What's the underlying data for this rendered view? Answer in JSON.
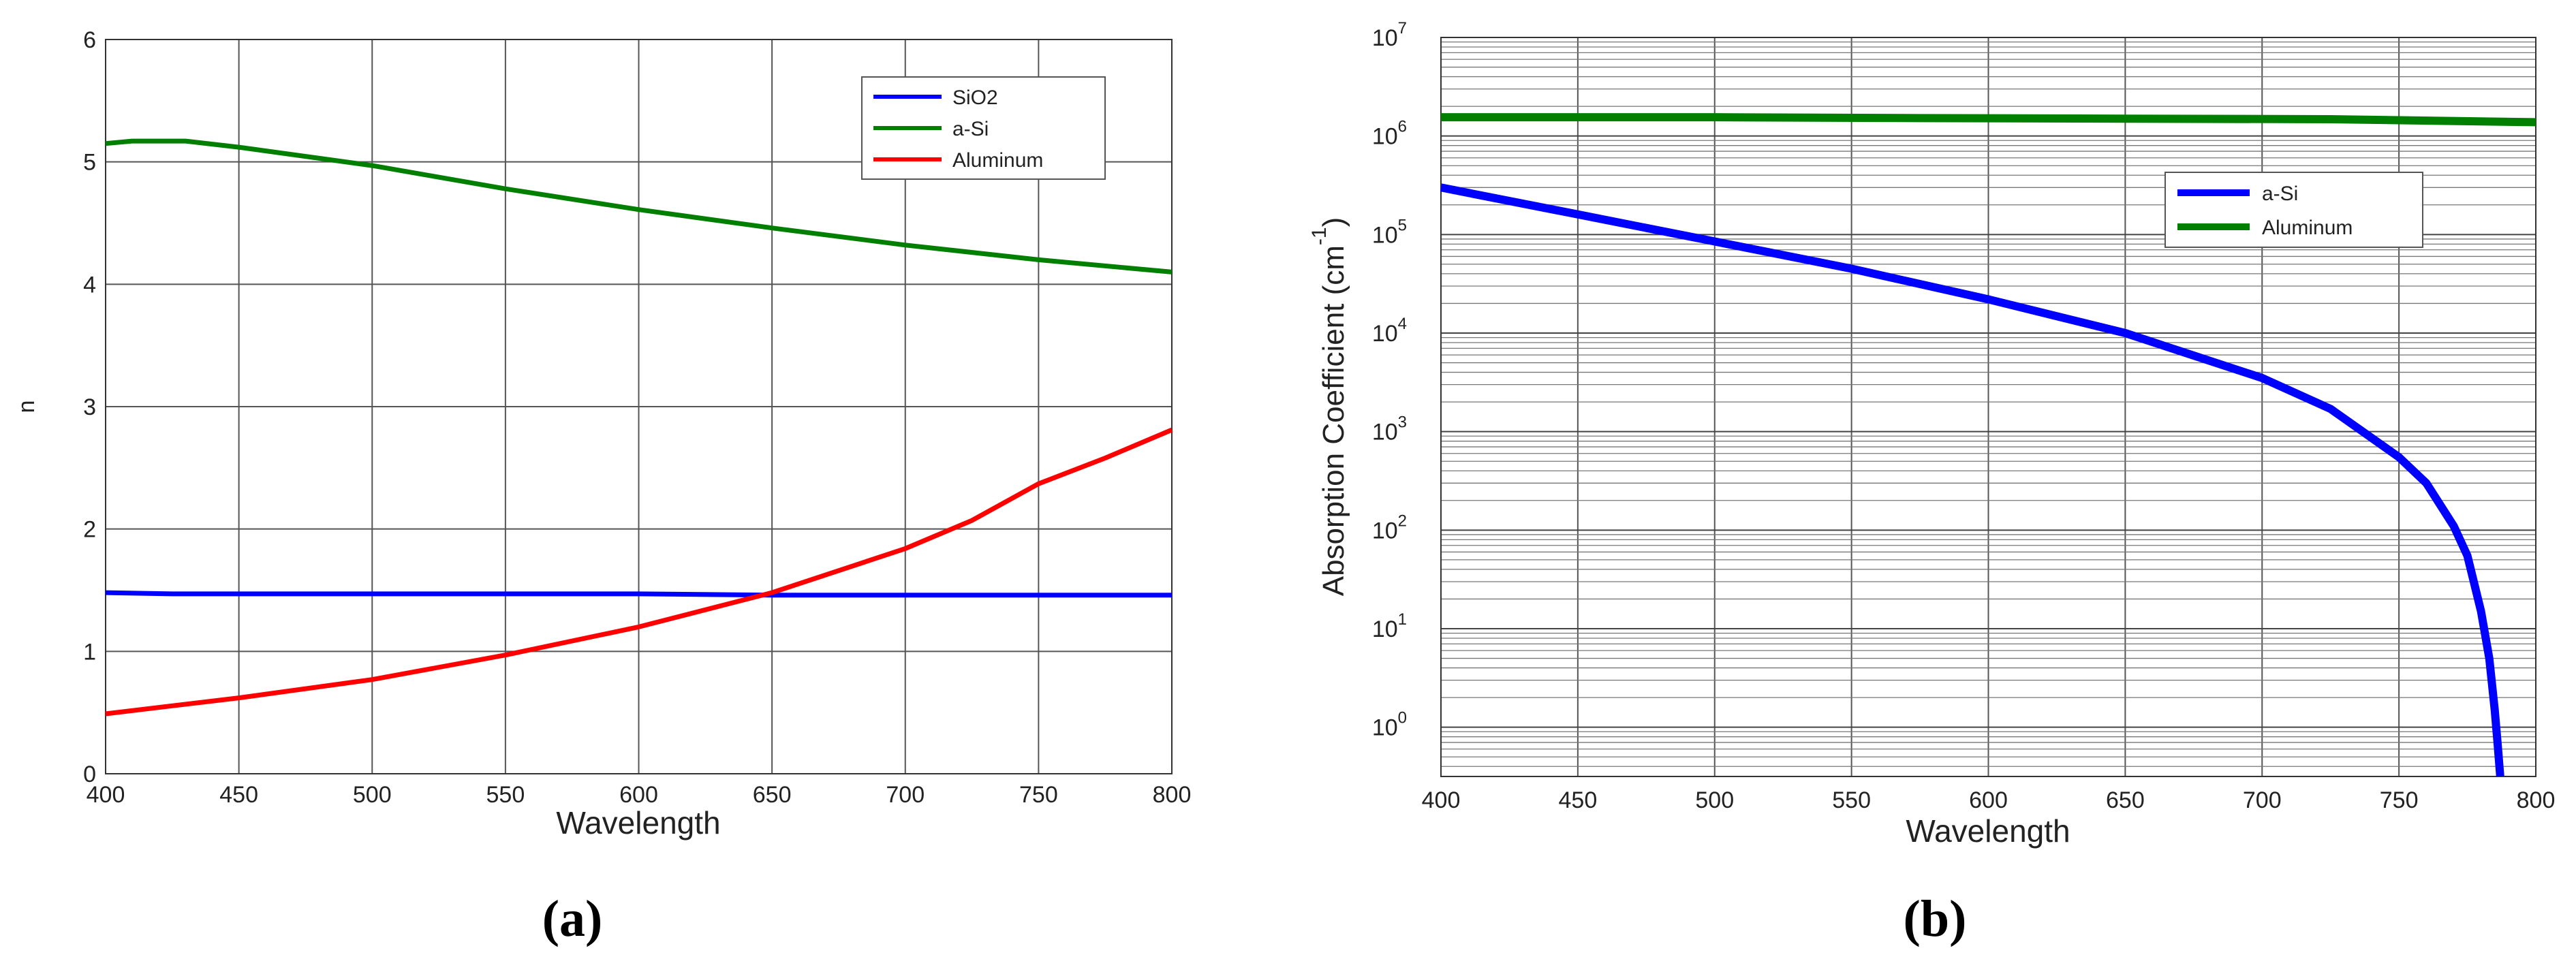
{
  "chart_data": [
    {
      "type": "line",
      "panel": "a",
      "caption": "(a)",
      "xlabel": "Wavelength",
      "ylabel": "n",
      "xlim": [
        400,
        800
      ],
      "ylim": [
        0,
        6
      ],
      "xticks": [
        "400",
        "450",
        "500",
        "550",
        "600",
        "650",
        "700",
        "750",
        "800"
      ],
      "yticks": [
        "0",
        "1",
        "2",
        "3",
        "4",
        "5",
        "6"
      ],
      "grid": true,
      "legend_position": "top-right",
      "series": [
        {
          "name": "SiO2",
          "color": "#0000ff",
          "x": [
            400,
            425,
            450,
            500,
            550,
            600,
            650,
            700,
            750,
            800
          ],
          "y": [
            1.48,
            1.47,
            1.47,
            1.47,
            1.47,
            1.47,
            1.46,
            1.46,
            1.46,
            1.46
          ]
        },
        {
          "name": "a-Si",
          "color": "#007f00",
          "x": [
            400,
            410,
            430,
            450,
            500,
            550,
            600,
            650,
            700,
            750,
            800
          ],
          "y": [
            5.15,
            5.17,
            5.17,
            5.12,
            4.97,
            4.78,
            4.61,
            4.46,
            4.32,
            4.2,
            4.1
          ]
        },
        {
          "name": "Aluminum",
          "color": "#ff0000",
          "x": [
            400,
            450,
            500,
            550,
            600,
            650,
            700,
            725,
            750,
            775,
            800
          ],
          "y": [
            0.49,
            0.62,
            0.77,
            0.97,
            1.2,
            1.48,
            1.84,
            2.07,
            2.37,
            2.58,
            2.81
          ]
        }
      ]
    },
    {
      "type": "line",
      "panel": "b",
      "caption": "(b)",
      "xlabel": "Wavelength",
      "ylabel": "Absorption Coefficient (cm",
      "ylabel_superscript": "-1",
      "ylabel_close": ")",
      "xlim": [
        400,
        800
      ],
      "ylim_log10": [
        -0.5,
        7
      ],
      "yscale": "log",
      "xticks": [
        "400",
        "450",
        "500",
        "550",
        "600",
        "650",
        "700",
        "750",
        "800"
      ],
      "yticks": [
        {
          "base": "10",
          "exp": "0"
        },
        {
          "base": "10",
          "exp": "1"
        },
        {
          "base": "10",
          "exp": "2"
        },
        {
          "base": "10",
          "exp": "3"
        },
        {
          "base": "10",
          "exp": "4"
        },
        {
          "base": "10",
          "exp": "5"
        },
        {
          "base": "10",
          "exp": "6"
        },
        {
          "base": "10",
          "exp": "7"
        }
      ],
      "grid": true,
      "legend_position": "upper-right",
      "series": [
        {
          "name": "a-Si",
          "color": "#0000ff",
          "x": [
            400,
            450,
            500,
            550,
            600,
            650,
            700,
            725,
            750,
            760,
            770,
            775,
            780,
            783,
            785,
            786,
            787
          ],
          "y": [
            300000,
            160000,
            85000,
            45000,
            22000,
            10000,
            3500,
            1700,
            550,
            300,
            110,
            55,
            15,
            5,
            1.5,
            0.7,
            0.3
          ]
        },
        {
          "name": "Aluminum",
          "color": "#007f00",
          "x": [
            400,
            500,
            575,
            650,
            725,
            800
          ],
          "y": [
            1550000,
            1550000,
            1520000,
            1500000,
            1480000,
            1380000
          ]
        }
      ]
    }
  ]
}
